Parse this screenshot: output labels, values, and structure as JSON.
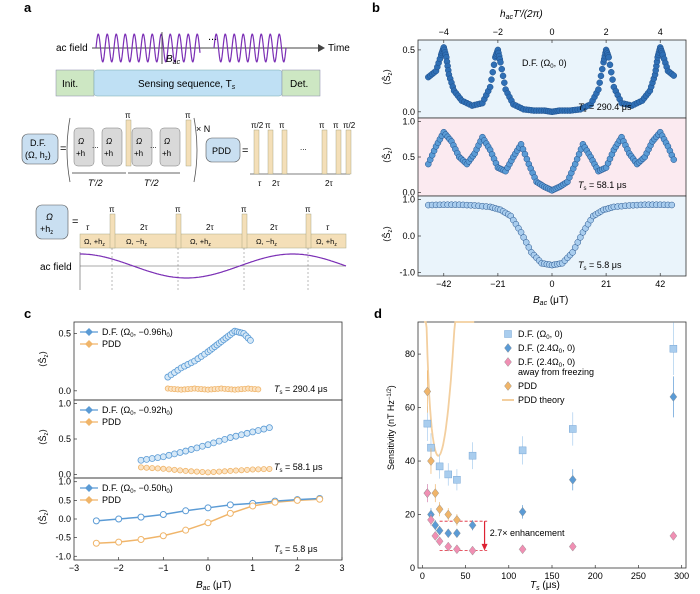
{
  "panels": {
    "a": "a",
    "b": "b",
    "c": "c",
    "d": "d"
  },
  "colors": {
    "blue_dark": "#2f6fb5",
    "blue_med": "#5b9bd5",
    "blue_light": "#a9cdee",
    "orange": "#f0b56a",
    "pink": "#f08fb3",
    "purple": "#7b2fb5",
    "green": "#cde7c3",
    "sense": "#bfe0f4",
    "pulse": "#f4dfb8",
    "dfbox": "#c9dff1"
  },
  "panel_a": {
    "ac_field": "ac field",
    "time": "Time",
    "bac": "B",
    "bac_sub": "ac",
    "dots": "...",
    "init": "Init.",
    "sensing": "Sensing sequence, T",
    "sensing_sub": "s",
    "det": "Det.",
    "df_line1": "D.F.",
    "df_line2": "(Ω, h",
    "df_line2_sub": "z",
    "df_line2_end": ")",
    "eq": "=",
    "omega": "Ω",
    "plus_h": "+h",
    "plus_h_sub": "z",
    "pi": "π",
    "times_n": "× N",
    "t_half": "T′/2",
    "pdd": "PDD",
    "pi_half": "π/2",
    "tau": "τ",
    "two_tau": "2τ",
    "row_omega_plus": "Ω, +h",
    "row_omega_minus": "Ω, −h",
    "row_z": "z"
  },
  "panel_b": {
    "top_axis_label": "h",
    "top_axis_sub": "ac",
    "top_axis_rest": "T′/(2π)",
    "top_ticks": [
      "−4",
      "−2",
      "0",
      "2",
      "4"
    ],
    "x_label": "B",
    "x_label_sub": "ac",
    "x_label_unit": " (μT)",
    "legend": "D.F. (Ω",
    "legend_sub": "0",
    "legend_end": ", 0)",
    "ylabels": [
      "⟨Ŝ",
      "⟨Ŝ",
      "⟨Ŝ"
    ],
    "ylabel_sub": "z",
    "ylabel_end": "⟩",
    "times": [
      "T",
      "T",
      "T"
    ],
    "times_sub": "s",
    "times_val": [
      " = 290.4 μs",
      " = 58.1 μs",
      " = 5.8 μs"
    ]
  },
  "panel_c": {
    "x_label": "B",
    "x_label_sub": "ac",
    "x_label_unit": " (μT)",
    "legend_df": [
      "D.F. (Ω",
      "D.F. (Ω",
      "D.F. (Ω"
    ],
    "legend_df_sub": "0",
    "legend_df_end": [
      ", −0.96h",
      ", −0.92h",
      ", −0.50h"
    ],
    "legend_df_sub2": "0",
    "legend_pdd": "PDD",
    "times": [
      "T",
      "T",
      "T"
    ],
    "times_sub": "s",
    "times_val": [
      " = 290.4 μs",
      " = 58.1 μs",
      " = 5.8 μs"
    ],
    "ylabel": "⟨Ŝ",
    "ylabel_sub": "z",
    "ylabel_end": "⟩"
  },
  "panel_d": {
    "x_label": "T",
    "x_label_sub": "s",
    "x_label_unit": " (μs)",
    "y_label": "Sensitivity (nT Hz",
    "y_label_sup": "−1/2",
    "y_label_end": ")",
    "legend": [
      {
        "text": "D.F. (Ω",
        "sub": "0",
        "end": ", 0)"
      },
      {
        "text": "D.F. (2.4Ω",
        "sub": "0",
        "end": ", 0)"
      },
      {
        "text": "D.F. (2.4Ω",
        "sub": "0",
        "end": ", 0)",
        "line2": "away from freezing"
      },
      {
        "text": "PDD",
        "sub": "",
        "end": ""
      },
      {
        "text": "PDD theory",
        "sub": "",
        "end": ""
      }
    ],
    "enhancement": "2.7× enhancement"
  },
  "chart_data": [
    {
      "panel": "b-top",
      "type": "scatter",
      "x": [
        -48,
        -45,
        -43,
        -42,
        -41,
        -40,
        -38,
        -35,
        -31,
        -27,
        -24,
        -22,
        -21,
        -20,
        -18,
        -15,
        -11,
        -7,
        -3,
        0,
        3,
        7,
        11,
        15,
        18,
        20,
        21,
        22,
        24,
        27,
        31,
        35,
        38,
        40,
        41,
        42,
        43,
        45,
        48
      ],
      "y": [
        0.28,
        0.33,
        0.46,
        0.52,
        0.44,
        0.3,
        0.17,
        0.09,
        0.05,
        0.07,
        0.2,
        0.44,
        0.5,
        0.4,
        0.18,
        0.06,
        0.02,
        0.01,
        0.01,
        0.0,
        0.01,
        0.01,
        0.02,
        0.06,
        0.18,
        0.4,
        0.5,
        0.44,
        0.2,
        0.07,
        0.05,
        0.09,
        0.17,
        0.3,
        0.44,
        0.52,
        0.46,
        0.33,
        0.28
      ],
      "xlim": [
        -52,
        52
      ],
      "ylim": [
        -0.05,
        0.58
      ],
      "yticks": [
        0,
        0.5
      ],
      "top_xticks_value": [
        -4,
        -2,
        0,
        2,
        4
      ]
    },
    {
      "panel": "b-mid",
      "type": "scatter",
      "x": [
        -48,
        -45,
        -42,
        -39,
        -36,
        -33,
        -30,
        -27,
        -24,
        -21,
        -18,
        -15,
        -12,
        -9,
        -6,
        -3,
        0,
        3,
        6,
        9,
        12,
        15,
        18,
        21,
        24,
        27,
        30,
        33,
        36,
        39,
        42,
        45,
        48
      ],
      "y": [
        0.4,
        0.65,
        0.85,
        0.72,
        0.5,
        0.4,
        0.55,
        0.78,
        0.6,
        0.35,
        0.3,
        0.5,
        0.68,
        0.4,
        0.15,
        0.08,
        0.03,
        0.08,
        0.15,
        0.4,
        0.68,
        0.5,
        0.3,
        0.35,
        0.6,
        0.78,
        0.55,
        0.4,
        0.5,
        0.72,
        0.85,
        0.65,
        0.4
      ],
      "xlim": [
        -52,
        52
      ],
      "ylim": [
        -0.05,
        1.05
      ],
      "yticks": [
        0,
        0.5,
        1.0
      ]
    },
    {
      "panel": "b-bot",
      "type": "scatter",
      "x": [
        -48,
        -42,
        -36,
        -30,
        -24,
        -20,
        -16,
        -12,
        -8,
        -4,
        0,
        4,
        8,
        12,
        16,
        20,
        24,
        30,
        36,
        42,
        48
      ],
      "y": [
        0.85,
        0.86,
        0.86,
        0.84,
        0.8,
        0.72,
        0.55,
        0.1,
        -0.45,
        -0.75,
        -0.8,
        -0.75,
        -0.45,
        0.1,
        0.55,
        0.72,
        0.8,
        0.84,
        0.86,
        0.86,
        0.85
      ],
      "xlim": [
        -52,
        52
      ],
      "ylim": [
        -1.1,
        1.1
      ],
      "yticks": [
        -1.0,
        0,
        1.0
      ],
      "xticks": [
        -42,
        -21,
        0,
        21,
        42
      ]
    },
    {
      "panel": "c-top",
      "type": "scatter",
      "series": [
        {
          "name": "D.F.",
          "x": [
            -0.9,
            -0.6,
            -0.3,
            0.0,
            0.2,
            0.4,
            0.6,
            0.8,
            1.0
          ],
          "y": [
            0.12,
            0.2,
            0.26,
            0.34,
            0.4,
            0.46,
            0.52,
            0.5,
            0.42
          ]
        },
        {
          "name": "PDD",
          "x": [
            -0.9,
            -0.6,
            -0.3,
            0.0,
            0.3,
            0.6,
            0.9,
            1.2
          ],
          "y": [
            0.02,
            0.01,
            0.02,
            0.01,
            0.02,
            0.01,
            0.02,
            0.01
          ]
        }
      ],
      "xlim": [
        -3,
        3
      ],
      "ylim": [
        -0.08,
        0.6
      ],
      "yticks": [
        0,
        0.5
      ]
    },
    {
      "panel": "c-mid",
      "type": "scatter",
      "series": [
        {
          "name": "D.F.",
          "x": [
            -1.5,
            -1.0,
            -0.5,
            0.0,
            0.5,
            1.0,
            1.5
          ],
          "y": [
            0.2,
            0.25,
            0.33,
            0.42,
            0.52,
            0.6,
            0.68
          ]
        },
        {
          "name": "PDD",
          "x": [
            -1.5,
            -1.0,
            -0.5,
            0.0,
            0.5,
            1.0,
            1.5
          ],
          "y": [
            0.1,
            0.08,
            0.05,
            0.03,
            0.05,
            0.07,
            0.08
          ]
        }
      ],
      "xlim": [
        -3,
        3
      ],
      "ylim": [
        -0.05,
        1.05
      ],
      "yticks": [
        0,
        0.5,
        1.0
      ]
    },
    {
      "panel": "c-bot",
      "type": "line",
      "series": [
        {
          "name": "D.F.",
          "x": [
            -2.5,
            -2,
            -1.5,
            -1,
            -0.5,
            0,
            0.5,
            1,
            1.5,
            2,
            2.5
          ],
          "y": [
            -0.05,
            0.0,
            0.05,
            0.12,
            0.22,
            0.3,
            0.38,
            0.42,
            0.48,
            0.52,
            0.55
          ]
        },
        {
          "name": "PDD",
          "x": [
            -2.5,
            -2,
            -1.5,
            -1,
            -0.5,
            0,
            0.5,
            1,
            1.5,
            2,
            2.5
          ],
          "y": [
            -0.65,
            -0.62,
            -0.55,
            -0.45,
            -0.3,
            -0.1,
            0.15,
            0.35,
            0.45,
            0.5,
            0.53
          ]
        }
      ],
      "xlim": [
        -3,
        3
      ],
      "ylim": [
        -1.1,
        1.1
      ],
      "yticks": [
        -1.0,
        -0.5,
        0,
        0.5,
        1.0
      ],
      "xticks": [
        -3,
        -2,
        -1,
        0,
        1,
        2,
        3
      ]
    },
    {
      "panel": "d",
      "type": "scatter",
      "series": [
        {
          "name": "D.F. (Ω0, 0)",
          "x": [
            5.8,
            10,
            20,
            30,
            40,
            58.1,
            116,
            174,
            290.4
          ],
          "y": [
            54,
            45,
            38,
            35,
            33,
            42,
            44,
            52,
            82
          ]
        },
        {
          "name": "D.F. (2.4Ω0, 0)",
          "x": [
            5.8,
            10,
            15,
            20,
            30,
            40,
            58.1,
            116,
            174,
            290.4
          ],
          "y": [
            28,
            20,
            16,
            14,
            13,
            13,
            16,
            21,
            33,
            64
          ]
        },
        {
          "name": "D.F. (2.4Ω0, 0) away from freezing",
          "x": [
            5.8,
            10,
            15,
            20,
            30,
            40,
            58.1,
            116,
            174,
            290.4
          ],
          "y": [
            28,
            18,
            12,
            10,
            8,
            7,
            6.5,
            7,
            8,
            12
          ]
        },
        {
          "name": "PDD",
          "x": [
            5.8,
            10,
            15,
            20,
            30,
            40
          ],
          "y": [
            66,
            40,
            28,
            22,
            20,
            18
          ]
        }
      ],
      "xlim": [
        -5,
        305
      ],
      "ylim": [
        0,
        92
      ],
      "xticks": [
        0,
        50,
        100,
        150,
        200,
        250,
        300
      ],
      "yticks": [
        0,
        20,
        40,
        60,
        80
      ]
    }
  ]
}
